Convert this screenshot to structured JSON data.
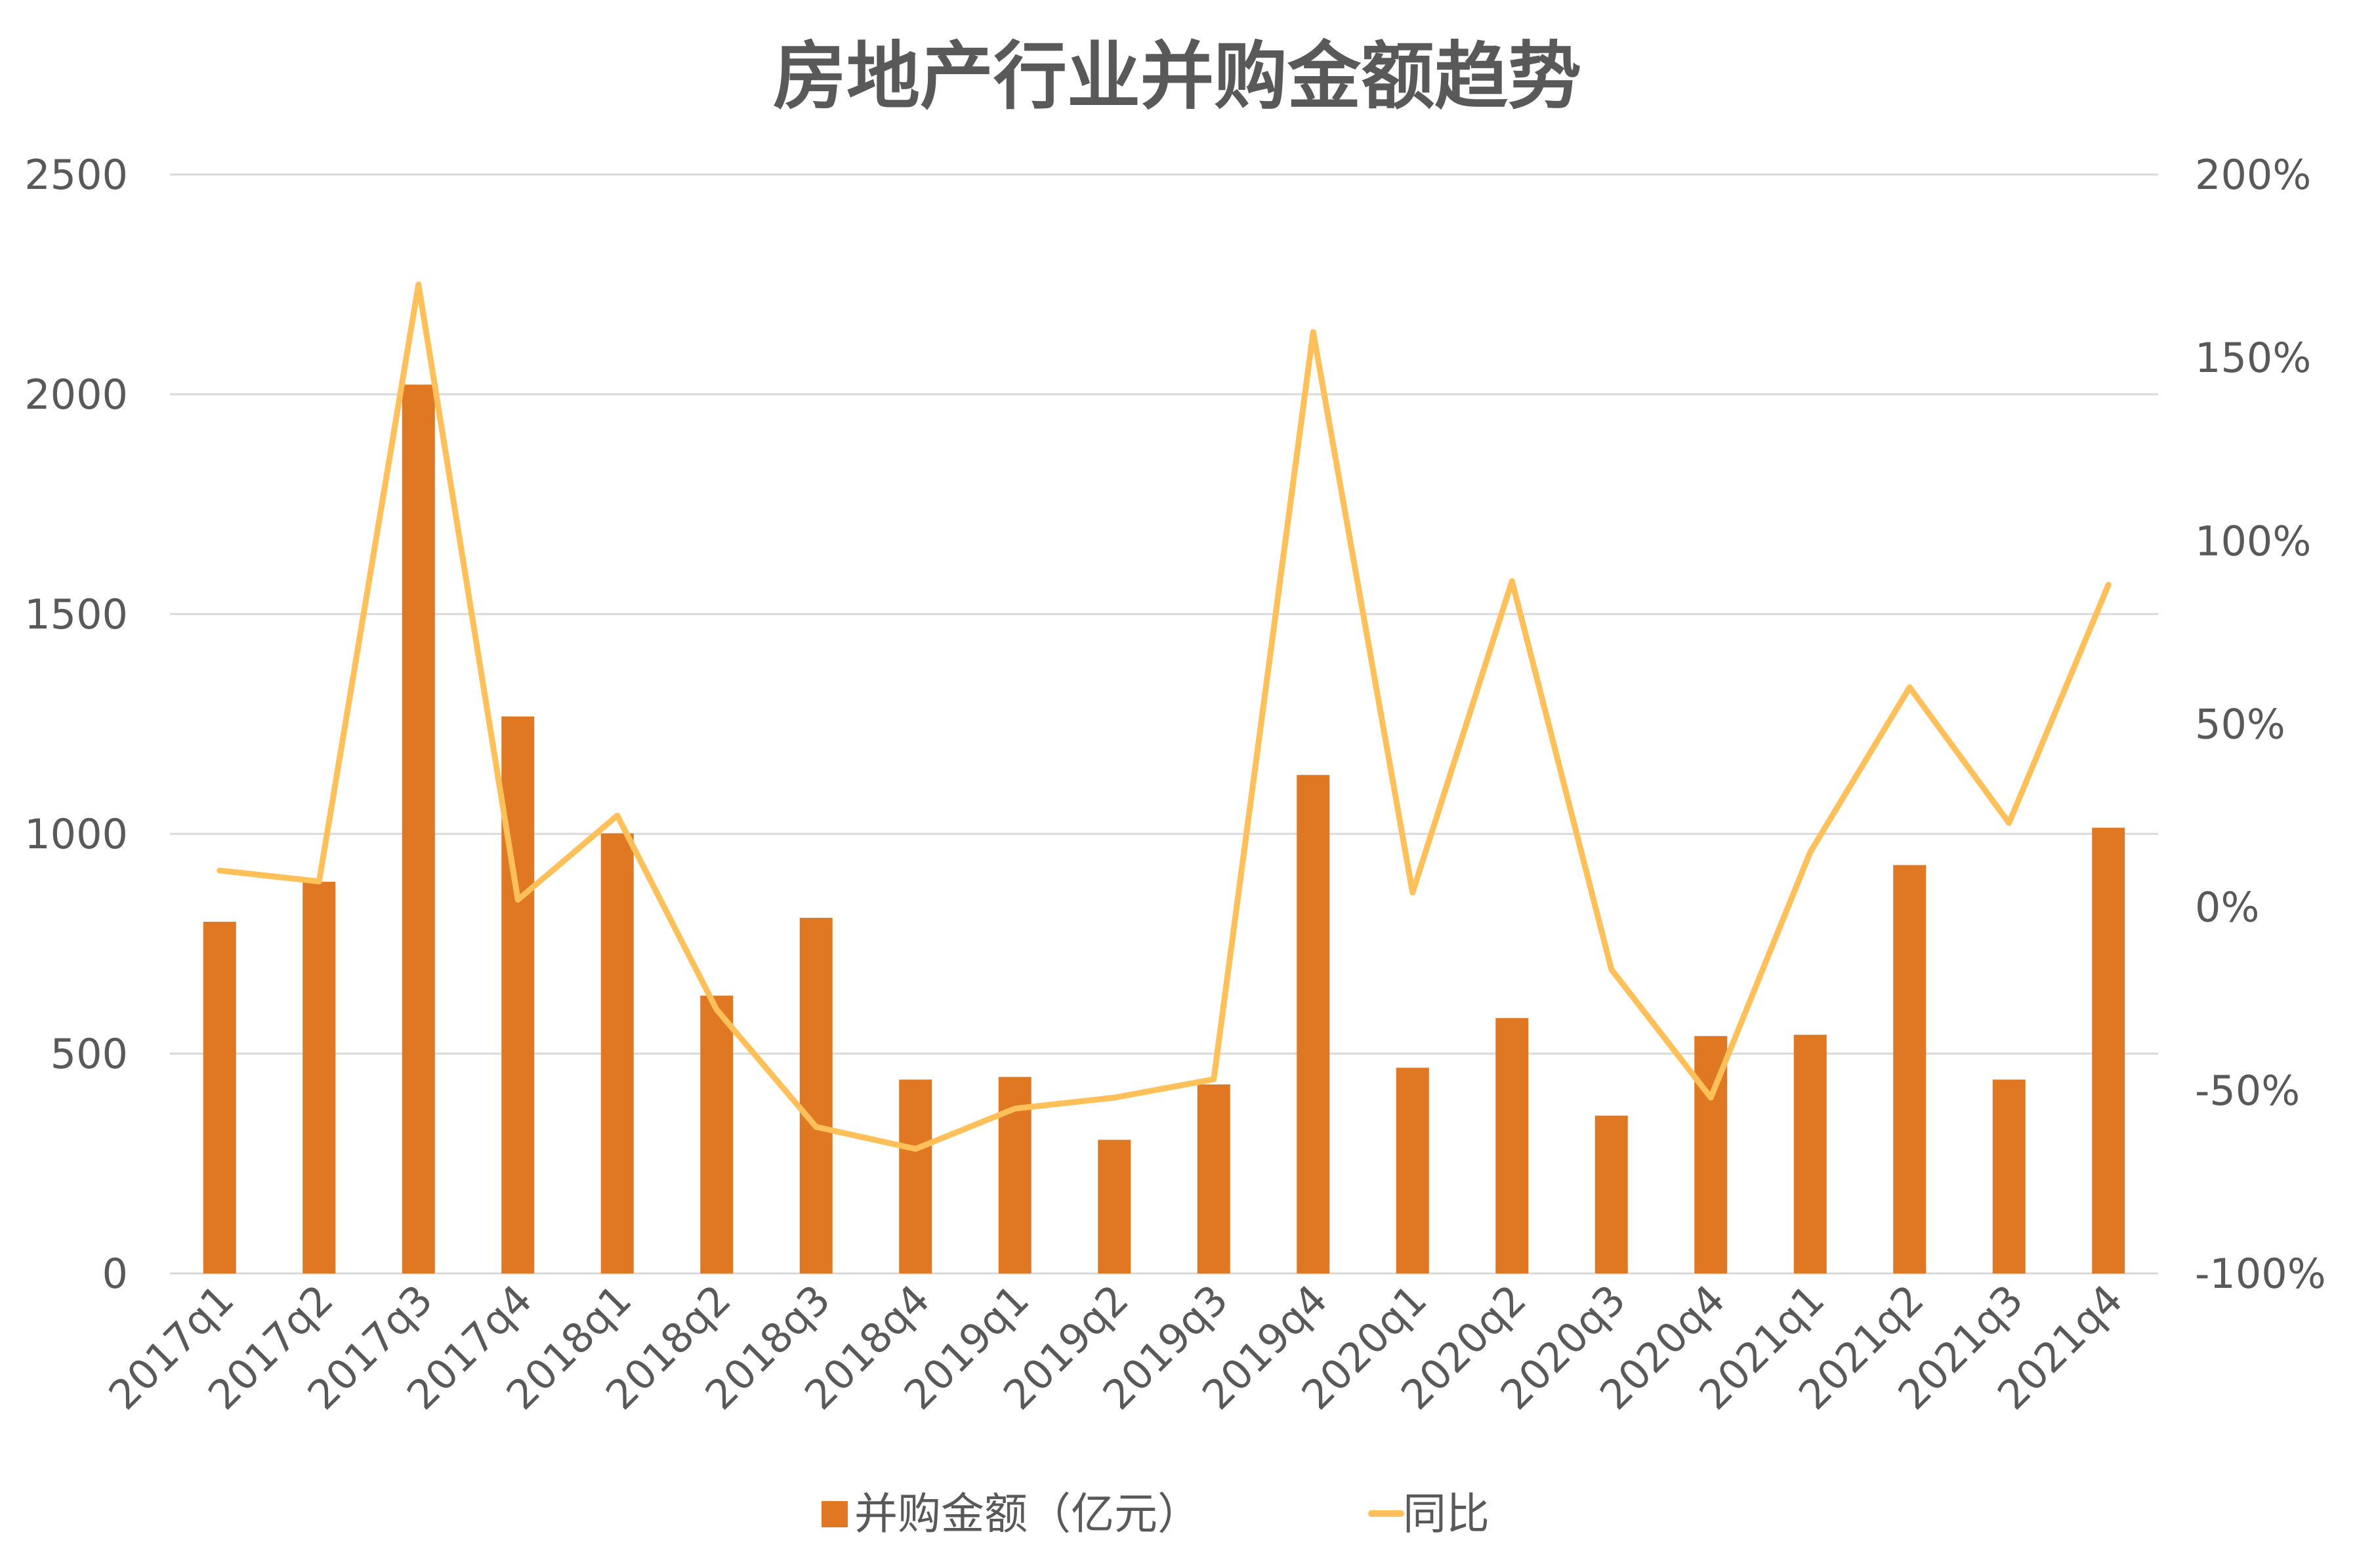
{
  "chart_data": {
    "type": "bar+line",
    "title": "房地产行业并购金额趋势",
    "categories": [
      "2017q1",
      "2017q2",
      "2017q3",
      "2017q4",
      "2018q1",
      "2018q2",
      "2018q3",
      "2018q4",
      "2019q1",
      "2019q2",
      "2019q3",
      "2019q4",
      "2020q1",
      "2020q2",
      "2020q3",
      "2020q4",
      "2021q1",
      "2021q2",
      "2021q3",
      "2021q4"
    ],
    "series": [
      {
        "name": "并购金额（亿元）",
        "type": "bar",
        "axis": "left",
        "color": "#E07722",
        "values": [
          800,
          891,
          2022,
          1267,
          1001,
          632,
          809,
          441,
          447,
          304,
          430,
          1134,
          468,
          581,
          359,
          540,
          543,
          929,
          441,
          1014
        ]
      },
      {
        "name": "同比",
        "type": "line",
        "axis": "right",
        "color": "#FFC05A",
        "values": [
          10,
          7,
          170,
          2,
          25,
          -28,
          -60,
          -66,
          -55,
          -52,
          -47,
          157,
          4,
          89,
          -17,
          -52,
          15,
          60,
          23,
          88
        ]
      }
    ],
    "y_left": {
      "range": [
        0,
        2500
      ],
      "ticks": [
        "0",
        "500",
        "1000",
        "1500",
        "2000",
        "2500"
      ]
    },
    "y_right": {
      "range": [
        -100,
        200
      ],
      "ticks": [
        "-100%",
        "-50%",
        "0%",
        "50%",
        "100%",
        "150%",
        "200%"
      ]
    },
    "grid": true,
    "legend": "bottom"
  }
}
